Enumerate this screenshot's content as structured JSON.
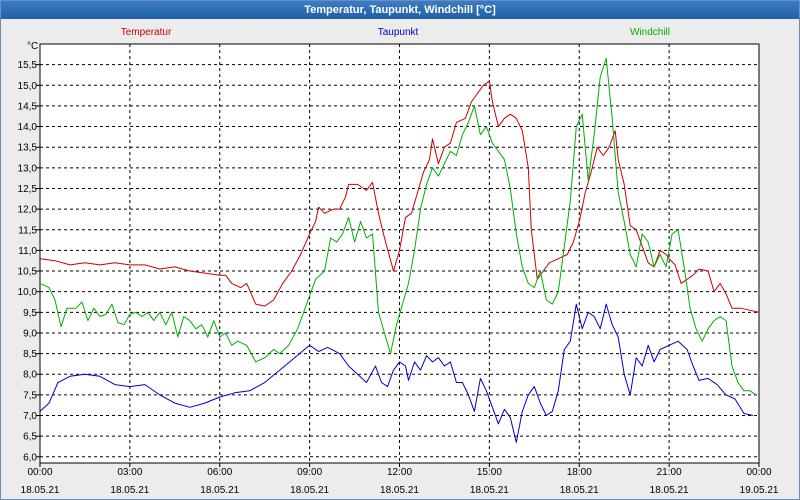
{
  "window": {
    "title": "Temperatur, Taupunkt, Windchill [°C]"
  },
  "chart_data": {
    "type": "line",
    "title": "Temperatur, Taupunkt, Windchill [°C]",
    "ylabel": "°C",
    "xlabel": "",
    "ylim": [
      5.85,
      16.0
    ],
    "xlim": [
      0,
      24
    ],
    "grid": true,
    "yticks": [
      6.0,
      6.5,
      7.0,
      7.5,
      8.0,
      8.5,
      9.0,
      9.5,
      10.0,
      10.5,
      11.0,
      11.5,
      12.0,
      12.5,
      13.0,
      13.5,
      14.0,
      14.5,
      15.0,
      15.5
    ],
    "ytick_labels": [
      "6,0",
      "6,5",
      "7,0",
      "7,5",
      "8,0",
      "8,5",
      "9,0",
      "9,5",
      "10,0",
      "10,5",
      "11,0",
      "11,5",
      "12,0",
      "12,5",
      "13,0",
      "13,5",
      "14,0",
      "14,5",
      "15,0",
      "15,5"
    ],
    "xticks": [
      {
        "h": 0,
        "time": "00:00",
        "date": "18.05.21"
      },
      {
        "h": 3,
        "time": "03:00",
        "date": "18.05.21"
      },
      {
        "h": 6,
        "time": "06:00",
        "date": "18.05.21"
      },
      {
        "h": 9,
        "time": "09:00",
        "date": "18.05.21"
      },
      {
        "h": 12,
        "time": "12:00",
        "date": "18.05.21"
      },
      {
        "h": 15,
        "time": "15:00",
        "date": "18.05.21"
      },
      {
        "h": 18,
        "time": "18:00",
        "date": "18.05.21"
      },
      {
        "h": 21,
        "time": "21:00",
        "date": "18.05.21"
      },
      {
        "h": 24,
        "time": "00:00",
        "date": "19.05.21"
      }
    ],
    "series": [
      {
        "name": "Temperatur",
        "color": "#cc0000",
        "points": [
          [
            0,
            10.8
          ],
          [
            0.5,
            10.75
          ],
          [
            1,
            10.65
          ],
          [
            1.5,
            10.7
          ],
          [
            2,
            10.65
          ],
          [
            2.5,
            10.7
          ],
          [
            3,
            10.65
          ],
          [
            3.5,
            10.65
          ],
          [
            4,
            10.55
          ],
          [
            4.5,
            10.6
          ],
          [
            5,
            10.5
          ],
          [
            5.5,
            10.45
          ],
          [
            6,
            10.4
          ],
          [
            6.2,
            10.4
          ],
          [
            6.4,
            10.2
          ],
          [
            6.7,
            10.1
          ],
          [
            6.9,
            10.2
          ],
          [
            7.2,
            9.7
          ],
          [
            7.5,
            9.65
          ],
          [
            7.8,
            9.8
          ],
          [
            8.1,
            10.2
          ],
          [
            8.4,
            10.5
          ],
          [
            8.7,
            10.9
          ],
          [
            9,
            11.4
          ],
          [
            9.2,
            11.7
          ],
          [
            9.3,
            12.05
          ],
          [
            9.5,
            11.9
          ],
          [
            9.8,
            12.0
          ],
          [
            10,
            12.0
          ],
          [
            10.2,
            12.3
          ],
          [
            10.3,
            12.6
          ],
          [
            10.6,
            12.6
          ],
          [
            10.9,
            12.45
          ],
          [
            11.1,
            12.65
          ],
          [
            11.3,
            11.9
          ],
          [
            11.5,
            11.3
          ],
          [
            11.8,
            10.5
          ],
          [
            12,
            11.0
          ],
          [
            12.2,
            11.8
          ],
          [
            12.4,
            11.9
          ],
          [
            12.6,
            12.4
          ],
          [
            12.8,
            12.9
          ],
          [
            13,
            13.2
          ],
          [
            13.1,
            13.7
          ],
          [
            13.3,
            13.1
          ],
          [
            13.5,
            13.5
          ],
          [
            13.7,
            13.6
          ],
          [
            13.9,
            14.1
          ],
          [
            14.2,
            14.2
          ],
          [
            14.4,
            14.6
          ],
          [
            14.6,
            14.8
          ],
          [
            14.8,
            15.0
          ],
          [
            15,
            15.1
          ],
          [
            15.1,
            14.6
          ],
          [
            15.3,
            14.0
          ],
          [
            15.5,
            14.2
          ],
          [
            15.7,
            14.3
          ],
          [
            15.9,
            14.2
          ],
          [
            16.1,
            13.9
          ],
          [
            16.3,
            13.0
          ],
          [
            16.4,
            11.5
          ],
          [
            16.6,
            10.3
          ],
          [
            16.8,
            10.5
          ],
          [
            17,
            10.7
          ],
          [
            17.3,
            10.8
          ],
          [
            17.6,
            10.9
          ],
          [
            17.8,
            11.2
          ],
          [
            18,
            11.7
          ],
          [
            18.2,
            12.4
          ],
          [
            18.4,
            12.9
          ],
          [
            18.6,
            13.5
          ],
          [
            18.8,
            13.3
          ],
          [
            19,
            13.5
          ],
          [
            19.2,
            13.9
          ],
          [
            19.3,
            13.2
          ],
          [
            19.5,
            12.6
          ],
          [
            19.7,
            11.6
          ],
          [
            19.9,
            11.5
          ],
          [
            20.1,
            11.1
          ],
          [
            20.3,
            10.7
          ],
          [
            20.5,
            10.6
          ],
          [
            20.7,
            11.0
          ],
          [
            20.9,
            10.9
          ],
          [
            21,
            10.8
          ],
          [
            21.2,
            10.65
          ],
          [
            21.4,
            10.2
          ],
          [
            21.6,
            10.3
          ],
          [
            21.8,
            10.4
          ],
          [
            22,
            10.55
          ],
          [
            22.3,
            10.5
          ],
          [
            22.5,
            10.0
          ],
          [
            22.7,
            10.2
          ],
          [
            22.9,
            9.95
          ],
          [
            23.1,
            9.6
          ],
          [
            23.4,
            9.6
          ],
          [
            23.7,
            9.55
          ],
          [
            24,
            9.5
          ]
        ]
      },
      {
        "name": "Taupunkt",
        "color": "#0000cc",
        "points": [
          [
            0,
            7.1
          ],
          [
            0.3,
            7.3
          ],
          [
            0.6,
            7.8
          ],
          [
            1,
            7.95
          ],
          [
            1.5,
            8.0
          ],
          [
            2,
            7.95
          ],
          [
            2.5,
            7.75
          ],
          [
            3,
            7.7
          ],
          [
            3.5,
            7.75
          ],
          [
            4,
            7.5
          ],
          [
            4.5,
            7.3
          ],
          [
            5,
            7.2
          ],
          [
            5.5,
            7.3
          ],
          [
            6,
            7.45
          ],
          [
            6.5,
            7.55
          ],
          [
            7,
            7.6
          ],
          [
            7.5,
            7.8
          ],
          [
            8,
            8.1
          ],
          [
            8.5,
            8.4
          ],
          [
            9,
            8.7
          ],
          [
            9.3,
            8.55
          ],
          [
            9.6,
            8.65
          ],
          [
            10,
            8.5
          ],
          [
            10.3,
            8.2
          ],
          [
            10.6,
            8.0
          ],
          [
            10.9,
            7.8
          ],
          [
            11.2,
            8.2
          ],
          [
            11.4,
            7.8
          ],
          [
            11.6,
            7.7
          ],
          [
            11.8,
            8.1
          ],
          [
            12,
            8.3
          ],
          [
            12.2,
            8.2
          ],
          [
            12.3,
            7.85
          ],
          [
            12.5,
            8.3
          ],
          [
            12.7,
            8.1
          ],
          [
            12.9,
            8.45
          ],
          [
            13.1,
            8.3
          ],
          [
            13.3,
            8.4
          ],
          [
            13.5,
            8.2
          ],
          [
            13.7,
            8.3
          ],
          [
            13.9,
            7.8
          ],
          [
            14.1,
            7.8
          ],
          [
            14.3,
            7.5
          ],
          [
            14.5,
            7.1
          ],
          [
            14.7,
            7.9
          ],
          [
            14.9,
            7.6
          ],
          [
            15.1,
            7.2
          ],
          [
            15.3,
            6.8
          ],
          [
            15.5,
            7.15
          ],
          [
            15.7,
            6.95
          ],
          [
            15.9,
            6.35
          ],
          [
            16.1,
            7.1
          ],
          [
            16.3,
            7.5
          ],
          [
            16.5,
            7.7
          ],
          [
            16.7,
            7.3
          ],
          [
            16.9,
            7.0
          ],
          [
            17.1,
            7.1
          ],
          [
            17.3,
            7.6
          ],
          [
            17.5,
            8.6
          ],
          [
            17.7,
            8.8
          ],
          [
            17.9,
            9.7
          ],
          [
            18.1,
            9.1
          ],
          [
            18.3,
            9.5
          ],
          [
            18.5,
            9.4
          ],
          [
            18.7,
            9.1
          ],
          [
            18.9,
            9.7
          ],
          [
            19.1,
            9.2
          ],
          [
            19.3,
            8.9
          ],
          [
            19.5,
            8.0
          ],
          [
            19.7,
            7.5
          ],
          [
            19.9,
            8.4
          ],
          [
            20.1,
            8.2
          ],
          [
            20.3,
            8.7
          ],
          [
            20.5,
            8.3
          ],
          [
            20.7,
            8.6
          ],
          [
            21,
            8.7
          ],
          [
            21.3,
            8.8
          ],
          [
            21.6,
            8.6
          ],
          [
            21.8,
            8.2
          ],
          [
            22,
            7.85
          ],
          [
            22.3,
            7.9
          ],
          [
            22.6,
            7.75
          ],
          [
            22.9,
            7.5
          ],
          [
            23.2,
            7.4
          ],
          [
            23.5,
            7.05
          ],
          [
            23.8,
            7.0
          ]
        ]
      },
      {
        "name": "Windchill",
        "color": "#00b000",
        "points": [
          [
            0,
            10.2
          ],
          [
            0.3,
            10.1
          ],
          [
            0.5,
            9.8
          ],
          [
            0.7,
            9.15
          ],
          [
            0.9,
            9.6
          ],
          [
            1.2,
            9.6
          ],
          [
            1.4,
            9.75
          ],
          [
            1.6,
            9.3
          ],
          [
            1.8,
            9.6
          ],
          [
            2,
            9.4
          ],
          [
            2.2,
            9.45
          ],
          [
            2.4,
            9.7
          ],
          [
            2.6,
            9.25
          ],
          [
            2.8,
            9.2
          ],
          [
            3,
            9.45
          ],
          [
            3.2,
            9.5
          ],
          [
            3.4,
            9.4
          ],
          [
            3.6,
            9.5
          ],
          [
            3.8,
            9.3
          ],
          [
            4,
            9.5
          ],
          [
            4.2,
            9.2
          ],
          [
            4.4,
            9.5
          ],
          [
            4.6,
            8.9
          ],
          [
            4.8,
            9.4
          ],
          [
            5,
            9.3
          ],
          [
            5.2,
            9.1
          ],
          [
            5.4,
            9.2
          ],
          [
            5.6,
            8.9
          ],
          [
            5.8,
            9.3
          ],
          [
            6,
            8.9
          ],
          [
            6.2,
            9.0
          ],
          [
            6.4,
            8.7
          ],
          [
            6.6,
            8.8
          ],
          [
            6.9,
            8.7
          ],
          [
            7.2,
            8.3
          ],
          [
            7.5,
            8.4
          ],
          [
            7.8,
            8.6
          ],
          [
            8,
            8.5
          ],
          [
            8.3,
            8.7
          ],
          [
            8.6,
            9.1
          ],
          [
            8.9,
            9.7
          ],
          [
            9.2,
            10.3
          ],
          [
            9.5,
            10.5
          ],
          [
            9.7,
            11.3
          ],
          [
            9.9,
            11.2
          ],
          [
            10.1,
            11.4
          ],
          [
            10.3,
            11.8
          ],
          [
            10.5,
            11.2
          ],
          [
            10.7,
            11.7
          ],
          [
            10.9,
            11.3
          ],
          [
            11.1,
            11.4
          ],
          [
            11.3,
            9.5
          ],
          [
            11.5,
            9.0
          ],
          [
            11.7,
            8.5
          ],
          [
            11.9,
            9.2
          ],
          [
            12.1,
            9.7
          ],
          [
            12.3,
            10.2
          ],
          [
            12.5,
            11.0
          ],
          [
            12.7,
            12.0
          ],
          [
            12.9,
            12.6
          ],
          [
            13.1,
            13.0
          ],
          [
            13.3,
            12.8
          ],
          [
            13.5,
            13.1
          ],
          [
            13.7,
            13.4
          ],
          [
            13.9,
            13.3
          ],
          [
            14.1,
            13.8
          ],
          [
            14.3,
            14.1
          ],
          [
            14.5,
            14.5
          ],
          [
            14.7,
            13.8
          ],
          [
            14.9,
            14.0
          ],
          [
            15.1,
            13.6
          ],
          [
            15.3,
            13.4
          ],
          [
            15.5,
            13.2
          ],
          [
            15.7,
            12.5
          ],
          [
            15.9,
            11.4
          ],
          [
            16.1,
            10.6
          ],
          [
            16.3,
            10.2
          ],
          [
            16.5,
            10.1
          ],
          [
            16.7,
            10.5
          ],
          [
            16.9,
            9.8
          ],
          [
            17.1,
            9.7
          ],
          [
            17.3,
            10.0
          ],
          [
            17.5,
            11.1
          ],
          [
            17.7,
            12.2
          ],
          [
            17.9,
            14.0
          ],
          [
            18.1,
            14.3
          ],
          [
            18.3,
            12.7
          ],
          [
            18.5,
            13.8
          ],
          [
            18.7,
            15.2
          ],
          [
            18.9,
            15.65
          ],
          [
            19.1,
            14.2
          ],
          [
            19.3,
            12.4
          ],
          [
            19.5,
            11.7
          ],
          [
            19.7,
            10.9
          ],
          [
            19.9,
            10.6
          ],
          [
            20.1,
            11.4
          ],
          [
            20.3,
            11.2
          ],
          [
            20.5,
            10.6
          ],
          [
            20.7,
            10.9
          ],
          [
            20.9,
            10.6
          ],
          [
            21.1,
            11.4
          ],
          [
            21.3,
            11.5
          ],
          [
            21.5,
            10.6
          ],
          [
            21.7,
            9.6
          ],
          [
            21.9,
            9.1
          ],
          [
            22.1,
            8.8
          ],
          [
            22.3,
            9.1
          ],
          [
            22.5,
            9.3
          ],
          [
            22.7,
            9.4
          ],
          [
            22.9,
            9.3
          ],
          [
            23.1,
            8.2
          ],
          [
            23.3,
            7.8
          ],
          [
            23.5,
            7.6
          ],
          [
            23.7,
            7.6
          ],
          [
            23.9,
            7.5
          ]
        ]
      }
    ]
  }
}
